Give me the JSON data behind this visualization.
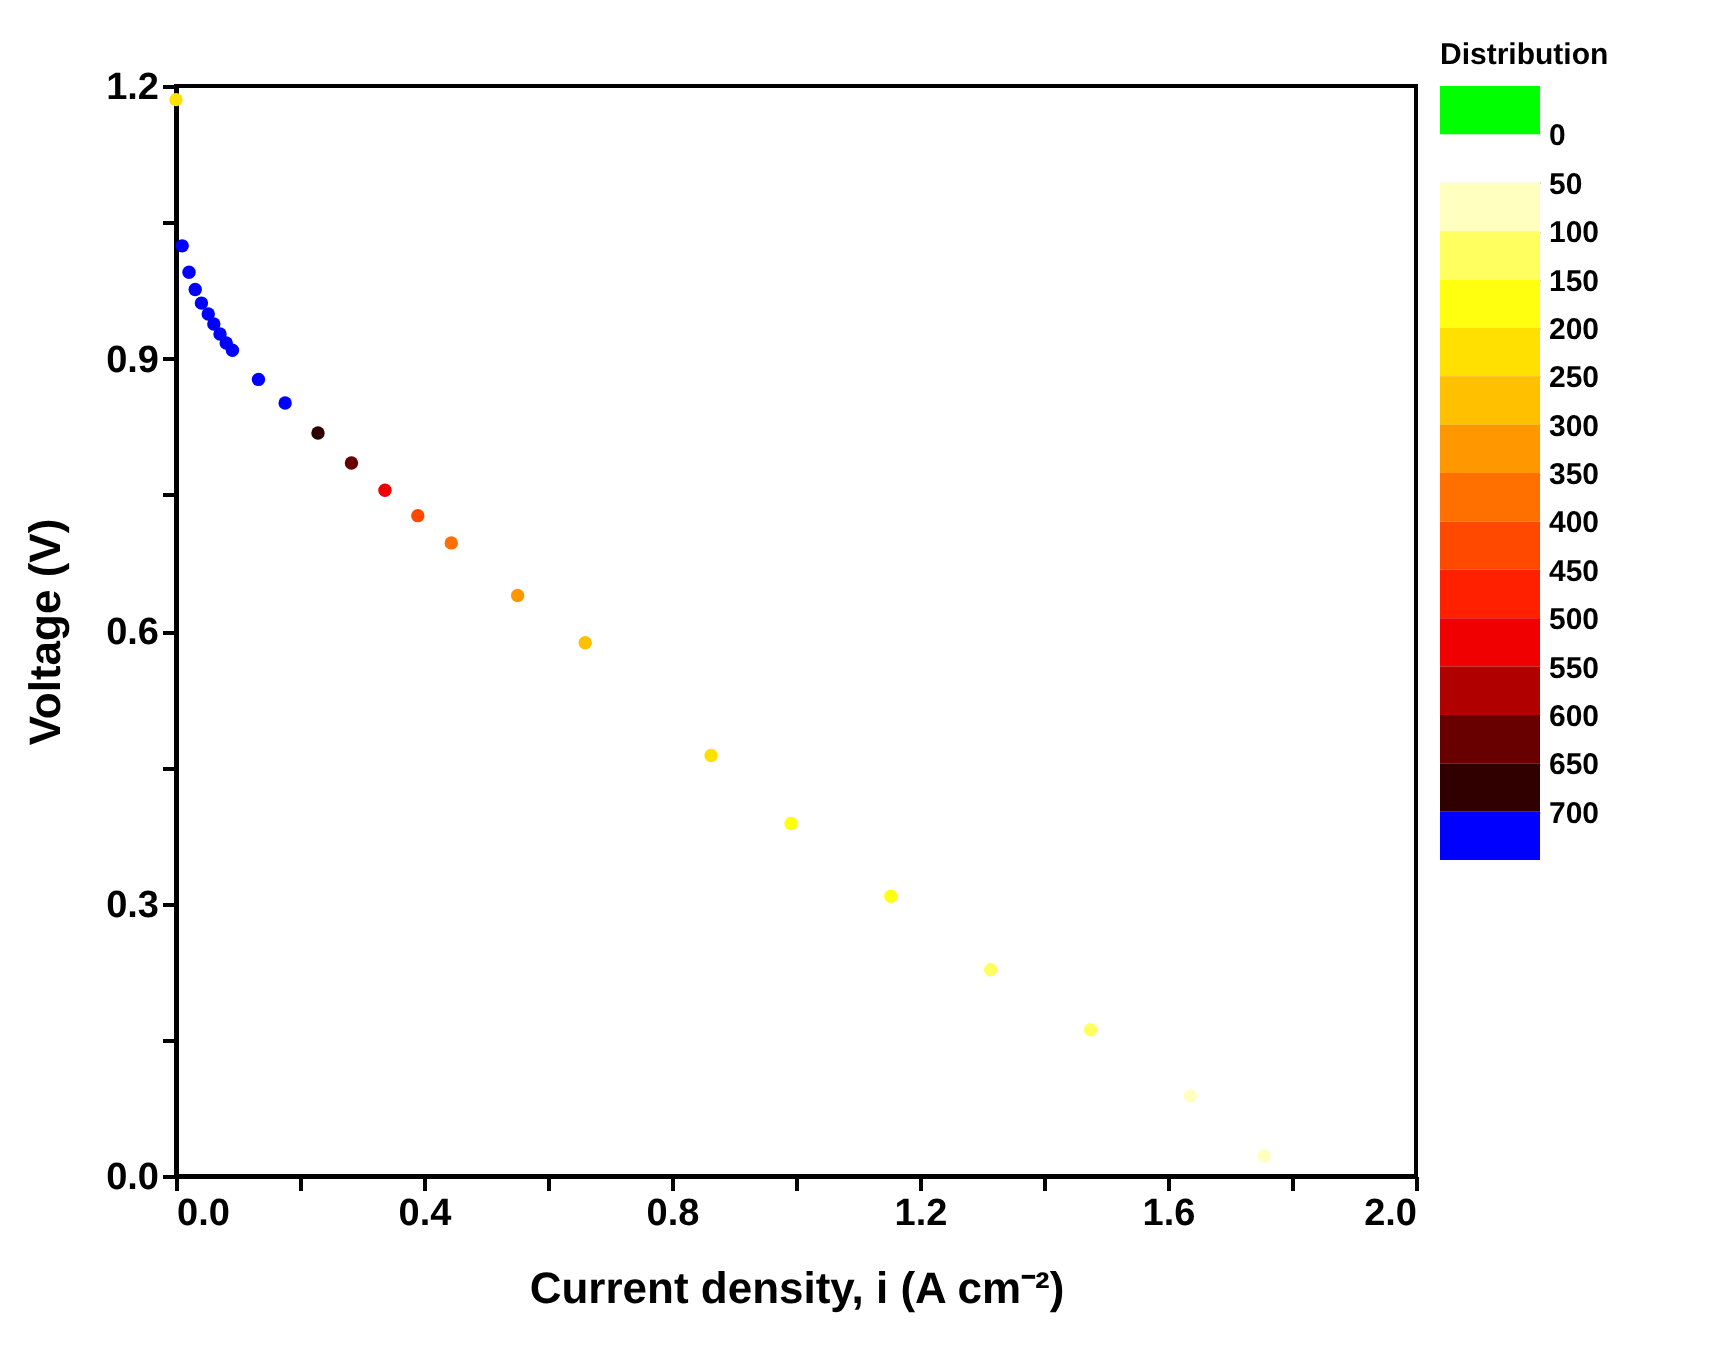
{
  "chart_data": {
    "type": "scatter",
    "xlabel": "Current density, i (A cm⁻²)",
    "ylabel": "Voltage (V)",
    "clabel": "Distribution",
    "series": [
      {
        "x": [
          0.0,
          0.01,
          0.021,
          0.031,
          0.041,
          0.052,
          0.061,
          0.071,
          0.081,
          0.091,
          0.133,
          0.176,
          0.229,
          0.283,
          0.337,
          0.39,
          0.444,
          0.551,
          0.66,
          0.863,
          0.992,
          1.153,
          1.314,
          1.475,
          1.636,
          1.755
        ],
        "values": [
          1.185,
          1.024,
          0.995,
          0.976,
          0.961,
          0.949,
          0.938,
          0.927,
          0.917,
          0.909,
          0.877,
          0.851,
          0.818,
          0.785,
          0.755,
          0.727,
          0.697,
          0.639,
          0.587,
          0.463,
          0.388,
          0.308,
          0.227,
          0.161,
          0.088,
          0.022
        ],
        "cvalues": [
          200,
          700,
          700,
          700,
          700,
          700,
          700,
          700,
          700,
          700,
          700,
          700,
          650,
          600,
          500,
          400,
          350,
          300,
          250,
          200,
          150,
          150,
          100,
          100,
          50,
          50
        ]
      }
    ],
    "xlim": [
      0,
      2.0
    ],
    "ylim": [
      0,
      1.2
    ],
    "xticks": [
      {
        "value": 0,
        "label": "0.0"
      },
      {
        "value": 0.2,
        "label": null
      },
      0.4,
      {
        "value": 0.6,
        "label": null
      },
      0.8,
      {
        "value": 1.0,
        "label": null
      },
      1.2,
      {
        "value": 1.4,
        "label": null
      },
      1.6,
      {
        "value": 1.8,
        "label": null
      },
      {
        "value": 2,
        "label": "2.0"
      }
    ],
    "yticks": [
      {
        "value": 0,
        "label": "0.0"
      },
      {
        "value": 0.15,
        "label": null
      },
      0.3,
      {
        "value": 0.45,
        "label": null
      },
      0.6,
      {
        "value": 0.75,
        "label": null
      },
      0.9,
      {
        "value": 1.05,
        "label": null
      },
      1.2
    ],
    "clim": [
      0,
      700
    ],
    "cticks": [
      0,
      50,
      100,
      150,
      200,
      250,
      300,
      350,
      400,
      450,
      500,
      550,
      600,
      650,
      700
    ],
    "grid": false,
    "marker": "circle"
  }
}
